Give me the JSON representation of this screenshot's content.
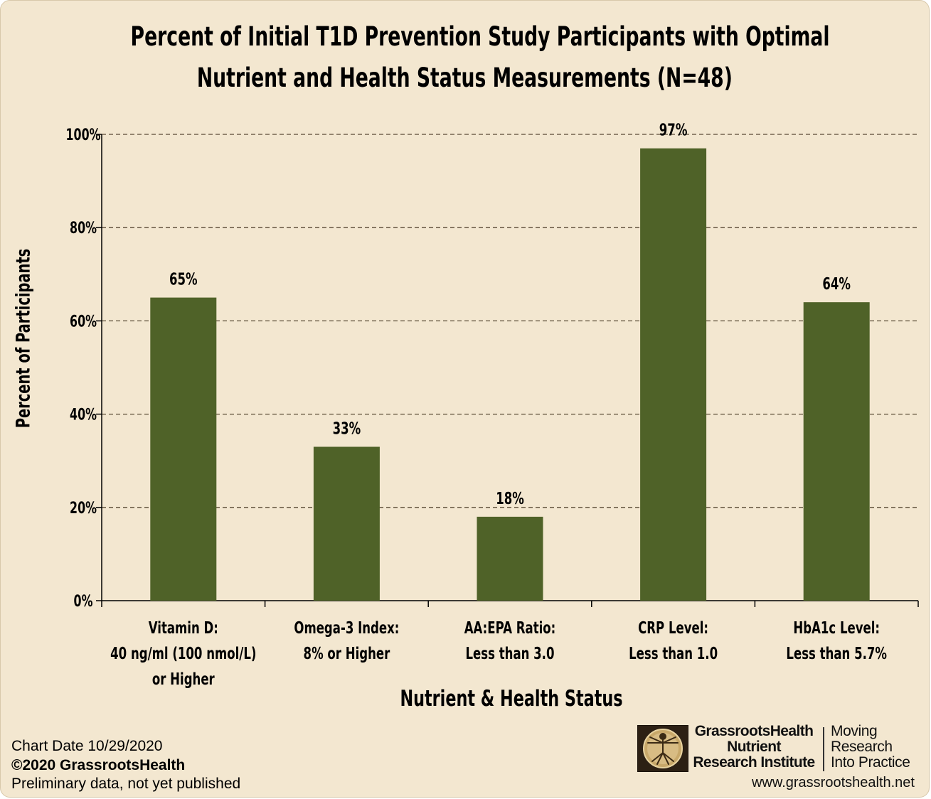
{
  "chart_data": {
    "type": "bar",
    "title_lines": [
      "Percent of Initial T1D Prevention Study Participants with Optimal",
      "Nutrient and Health Status Measurements (N=48)"
    ],
    "xlabel": "Nutrient & Health Status",
    "ylabel": "Percent of Participants",
    "ylim": [
      0,
      100
    ],
    "yticks": [
      "0%",
      "20%",
      "40%",
      "60%",
      "80%",
      "100%"
    ],
    "ytick_values": [
      0,
      20,
      40,
      60,
      80,
      100
    ],
    "grid": true,
    "bar_color": "#4f6228",
    "categories": [
      [
        "Vitamin D:",
        "40 ng/ml (100 nmol/L)",
        "or Higher"
      ],
      [
        "Omega-3 Index:",
        "8% or Higher"
      ],
      [
        "AA:EPA Ratio:",
        "Less than 3.0"
      ],
      [
        "CRP Level:",
        "Less than 1.0"
      ],
      [
        "HbA1c Level:",
        "Less than 5.7%"
      ]
    ],
    "values": [
      65,
      33,
      18,
      97,
      64
    ],
    "data_labels": [
      "65%",
      "33%",
      "18%",
      "97%",
      "64%"
    ]
  },
  "footer": {
    "chart_date": "Chart Date 10/29/2020",
    "copyright": "©2020 GrassrootsHealth",
    "note": "Preliminary data, not yet published"
  },
  "branding": {
    "org_lines": [
      "GrassrootsHealth",
      "Nutrient",
      "Research Institute"
    ],
    "tagline_lines": [
      "Moving",
      "Research",
      "Into Practice"
    ],
    "url": "www.grassrootshealth.net",
    "logo_icon": "vitruvian-man-icon"
  }
}
